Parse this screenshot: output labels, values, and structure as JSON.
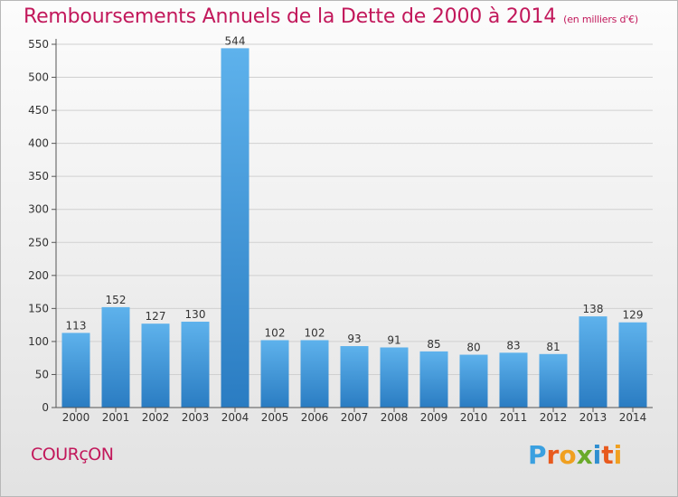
{
  "chart_data": {
    "type": "bar",
    "title": "Remboursements Annuels de la Dette de 2000 à 2014",
    "subtitle": "(en milliers d'€)",
    "categories": [
      "2000",
      "2001",
      "2002",
      "2003",
      "2004",
      "2005",
      "2006",
      "2007",
      "2008",
      "2009",
      "2010",
      "2011",
      "2012",
      "2013",
      "2014"
    ],
    "values": [
      113,
      152,
      127,
      130,
      544,
      102,
      102,
      93,
      91,
      85,
      80,
      83,
      81,
      138,
      129
    ],
    "ylim": [
      0,
      550
    ],
    "yticks": [
      0,
      50,
      100,
      150,
      200,
      250,
      300,
      350,
      400,
      450,
      500,
      550
    ],
    "grid": true,
    "bar_color": "#3a8fd8"
  },
  "town": "COURçON",
  "logo": {
    "letters": [
      "P",
      "r",
      "o",
      "x",
      "i",
      "t",
      "i"
    ],
    "colors": [
      "#3aa0e0",
      "#e85a1e",
      "#f0a020",
      "#6aaa2a",
      "#2f8fd0",
      "#e85a1e",
      "#f0a020"
    ]
  }
}
